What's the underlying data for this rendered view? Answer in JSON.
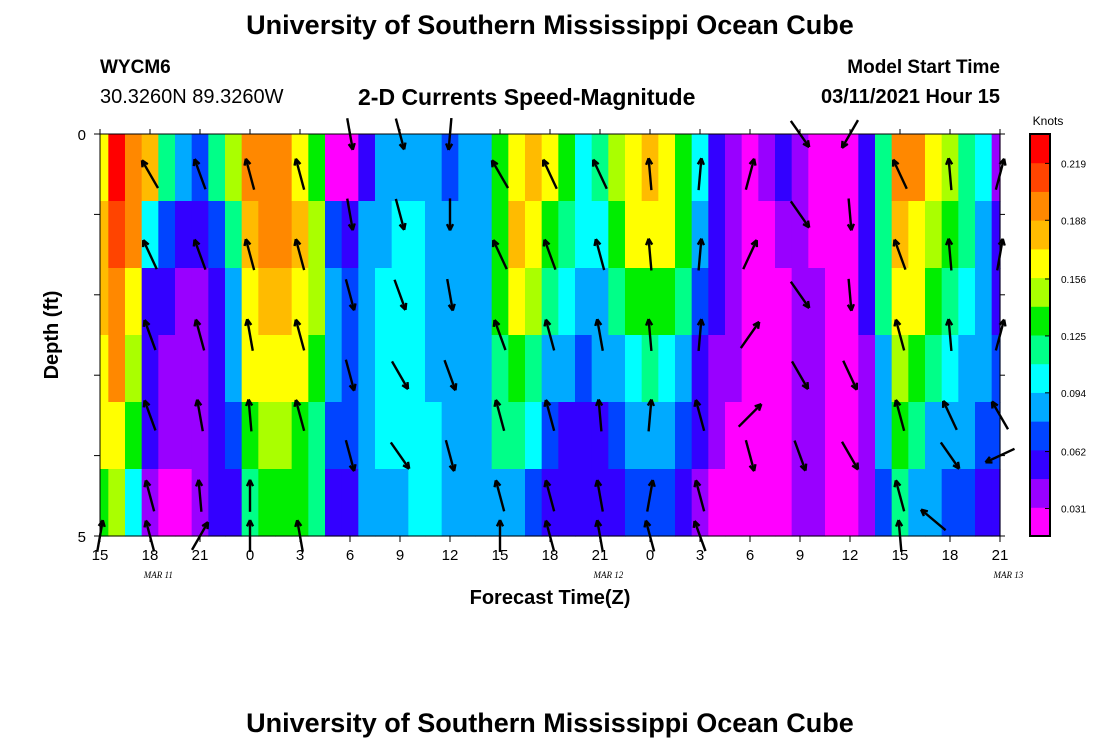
{
  "header": {
    "title": "University of Southern Mississippi Ocean Cube",
    "station_id": "WYCM6",
    "station_location": "30.3260N 89.3260W",
    "chart_title": "2-D Currents Speed-Magnitude",
    "start_label": "Model Start Time",
    "start_value": "03/11/2021 Hour 15"
  },
  "footer": {
    "title": "University of Southern Mississippi Ocean Cube"
  },
  "colors": {
    "palette": [
      "#ff00ff",
      "#9900ff",
      "#3300ff",
      "#0044ff",
      "#00aaff",
      "#00ffff",
      "#00ff88",
      "#00ee00",
      "#aaff00",
      "#ffff00",
      "#ffbb00",
      "#ff8800",
      "#ff4400",
      "#ff0000"
    ]
  },
  "chart_data": {
    "type": "heatmap",
    "title": "2-D Currents Speed-Magnitude",
    "xlabel": "Forecast Time(Z)",
    "ylabel": "Depth (ft)",
    "x_tick_labels": [
      "15",
      "18",
      "21",
      "0",
      "3",
      "6",
      "9",
      "12",
      "15",
      "18",
      "21",
      "0",
      "3",
      "6",
      "9",
      "12",
      "15",
      "18",
      "21"
    ],
    "date_labels": [
      "MAR  11",
      "MAR  12",
      "MAR  13"
    ],
    "y_tick_labels": [
      "0",
      "5"
    ],
    "ylim": [
      0,
      5
    ],
    "legend": {
      "title": "Knots",
      "placement": "right",
      "labels": [
        "0.219",
        "0.188",
        "0.156",
        "0.125",
        "0.094",
        "0.062",
        "0.031"
      ],
      "range": [
        0.016,
        0.235
      ]
    },
    "forecast_hours": [
      15,
      16,
      17,
      18,
      19,
      20,
      21,
      22,
      23,
      0,
      1,
      2,
      3,
      4,
      5,
      6,
      7,
      8,
      9,
      10,
      11,
      12,
      13,
      14,
      15,
      16,
      17,
      18,
      19,
      20,
      21,
      22,
      23,
      0,
      1,
      2,
      3,
      4,
      5,
      6,
      7,
      8,
      9,
      10,
      11,
      12,
      13,
      14,
      15,
      16,
      17,
      18,
      19,
      20,
      21
    ],
    "depth_levels": [
      0,
      1,
      2,
      3,
      4,
      5
    ],
    "speed_knots": [
      [
        0.17,
        0.22,
        0.2,
        0.18,
        0.12,
        0.09,
        0.07,
        0.11,
        0.15,
        0.19,
        0.2,
        0.19,
        0.17,
        0.14,
        0.03,
        0.02,
        0.06,
        0.08,
        0.09,
        0.08,
        0.08,
        0.07,
        0.08,
        0.09,
        0.13,
        0.17,
        0.18,
        0.16,
        0.13,
        0.1,
        0.11,
        0.15,
        0.17,
        0.18,
        0.16,
        0.14,
        0.1,
        0.05,
        0.04,
        0.03,
        0.04,
        0.05,
        0.04,
        0.03,
        0.03,
        0.02,
        0.05,
        0.12,
        0.2,
        0.19,
        0.17,
        0.15,
        0.12,
        0.1,
        0.04
      ],
      [
        0.18,
        0.21,
        0.19,
        0.1,
        0.07,
        0.05,
        0.05,
        0.07,
        0.11,
        0.18,
        0.19,
        0.19,
        0.18,
        0.15,
        0.07,
        0.06,
        0.08,
        0.09,
        0.1,
        0.1,
        0.09,
        0.08,
        0.08,
        0.09,
        0.14,
        0.18,
        0.17,
        0.14,
        0.12,
        0.1,
        0.1,
        0.13,
        0.16,
        0.17,
        0.16,
        0.13,
        0.08,
        0.05,
        0.04,
        0.03,
        0.03,
        0.04,
        0.04,
        0.03,
        0.03,
        0.03,
        0.05,
        0.12,
        0.18,
        0.17,
        0.15,
        0.13,
        0.11,
        0.09,
        0.05
      ],
      [
        0.18,
        0.2,
        0.17,
        0.06,
        0.05,
        0.04,
        0.04,
        0.05,
        0.09,
        0.17,
        0.18,
        0.18,
        0.17,
        0.15,
        0.08,
        0.07,
        0.09,
        0.1,
        0.1,
        0.1,
        0.09,
        0.09,
        0.08,
        0.09,
        0.13,
        0.17,
        0.15,
        0.12,
        0.1,
        0.09,
        0.09,
        0.11,
        0.13,
        0.14,
        0.13,
        0.11,
        0.07,
        0.05,
        0.04,
        0.03,
        0.03,
        0.03,
        0.04,
        0.04,
        0.03,
        0.03,
        0.05,
        0.11,
        0.17,
        0.16,
        0.13,
        0.11,
        0.1,
        0.09,
        0.06
      ],
      [
        0.17,
        0.19,
        0.15,
        0.05,
        0.04,
        0.04,
        0.04,
        0.05,
        0.08,
        0.16,
        0.17,
        0.17,
        0.16,
        0.14,
        0.08,
        0.07,
        0.09,
        0.1,
        0.1,
        0.1,
        0.09,
        0.09,
        0.09,
        0.09,
        0.12,
        0.14,
        0.12,
        0.09,
        0.08,
        0.07,
        0.08,
        0.09,
        0.1,
        0.11,
        0.1,
        0.09,
        0.06,
        0.04,
        0.04,
        0.03,
        0.03,
        0.03,
        0.04,
        0.04,
        0.03,
        0.03,
        0.04,
        0.09,
        0.15,
        0.13,
        0.11,
        0.1,
        0.09,
        0.08,
        0.07
      ],
      [
        0.16,
        0.17,
        0.13,
        0.05,
        0.04,
        0.04,
        0.04,
        0.05,
        0.07,
        0.14,
        0.15,
        0.15,
        0.14,
        0.12,
        0.07,
        0.07,
        0.09,
        0.1,
        0.1,
        0.1,
        0.1,
        0.09,
        0.09,
        0.09,
        0.11,
        0.12,
        0.1,
        0.07,
        0.06,
        0.06,
        0.06,
        0.07,
        0.08,
        0.09,
        0.08,
        0.07,
        0.05,
        0.04,
        0.03,
        0.03,
        0.03,
        0.03,
        0.04,
        0.04,
        0.03,
        0.03,
        0.04,
        0.08,
        0.13,
        0.11,
        0.09,
        0.08,
        0.08,
        0.07,
        0.07
      ],
      [
        0.13,
        0.15,
        0.1,
        0.04,
        0.03,
        0.03,
        0.04,
        0.05,
        0.06,
        0.11,
        0.13,
        0.14,
        0.13,
        0.11,
        0.06,
        0.06,
        0.08,
        0.09,
        0.09,
        0.1,
        0.1,
        0.09,
        0.09,
        0.09,
        0.09,
        0.09,
        0.07,
        0.05,
        0.05,
        0.05,
        0.05,
        0.06,
        0.07,
        0.07,
        0.07,
        0.06,
        0.04,
        0.03,
        0.03,
        0.03,
        0.03,
        0.03,
        0.04,
        0.04,
        0.03,
        0.03,
        0.04,
        0.07,
        0.11,
        0.09,
        0.08,
        0.07,
        0.07,
        0.06,
        0.06
      ]
    ],
    "vectors": [
      {
        "hour_index": 0,
        "depth": 5,
        "dir": 10
      },
      {
        "hour_index": 3,
        "depth": 0.5,
        "dir": 330
      },
      {
        "hour_index": 6,
        "depth": 0.5,
        "dir": 340
      },
      {
        "hour_index": 9,
        "depth": 0.5,
        "dir": 345
      },
      {
        "hour_index": 12,
        "depth": 0.5,
        "dir": 345
      },
      {
        "hour_index": 15,
        "depth": 0,
        "dir": 170
      },
      {
        "hour_index": 18,
        "depth": 0,
        "dir": 165
      },
      {
        "hour_index": 21,
        "depth": 0,
        "dir": 185
      },
      {
        "hour_index": 24,
        "depth": 0.5,
        "dir": 330
      },
      {
        "hour_index": 27,
        "depth": 0.5,
        "dir": 335
      },
      {
        "hour_index": 30,
        "depth": 0.5,
        "dir": 335
      },
      {
        "hour_index": 33,
        "depth": 0.5,
        "dir": 355
      },
      {
        "hour_index": 36,
        "depth": 0.5,
        "dir": 5
      },
      {
        "hour_index": 39,
        "depth": 0.5,
        "dir": 15
      },
      {
        "hour_index": 42,
        "depth": 0,
        "dir": 145
      },
      {
        "hour_index": 45,
        "depth": 0,
        "dir": 210
      },
      {
        "hour_index": 48,
        "depth": 0.5,
        "dir": 335
      },
      {
        "hour_index": 51,
        "depth": 0.5,
        "dir": 355
      },
      {
        "hour_index": 54,
        "depth": 0.5,
        "dir": 15
      },
      {
        "hour_index": 3,
        "depth": 1.5,
        "dir": 335
      },
      {
        "hour_index": 6,
        "depth": 1.5,
        "dir": 340
      },
      {
        "hour_index": 9,
        "depth": 1.5,
        "dir": 345
      },
      {
        "hour_index": 12,
        "depth": 1.5,
        "dir": 345
      },
      {
        "hour_index": 15,
        "depth": 1,
        "dir": 170
      },
      {
        "hour_index": 18,
        "depth": 1,
        "dir": 165
      },
      {
        "hour_index": 21,
        "depth": 1,
        "dir": 180
      },
      {
        "hour_index": 24,
        "depth": 1.5,
        "dir": 335
      },
      {
        "hour_index": 27,
        "depth": 1.5,
        "dir": 340
      },
      {
        "hour_index": 30,
        "depth": 1.5,
        "dir": 345
      },
      {
        "hour_index": 33,
        "depth": 1.5,
        "dir": 355
      },
      {
        "hour_index": 36,
        "depth": 1.5,
        "dir": 5
      },
      {
        "hour_index": 39,
        "depth": 1.5,
        "dir": 25
      },
      {
        "hour_index": 42,
        "depth": 1,
        "dir": 145
      },
      {
        "hour_index": 45,
        "depth": 1,
        "dir": 175
      },
      {
        "hour_index": 48,
        "depth": 1.5,
        "dir": 340
      },
      {
        "hour_index": 51,
        "depth": 1.5,
        "dir": 355
      },
      {
        "hour_index": 54,
        "depth": 1.5,
        "dir": 10
      },
      {
        "hour_index": 3,
        "depth": 2.5,
        "dir": 340
      },
      {
        "hour_index": 6,
        "depth": 2.5,
        "dir": 345
      },
      {
        "hour_index": 9,
        "depth": 2.5,
        "dir": 350
      },
      {
        "hour_index": 12,
        "depth": 2.5,
        "dir": 345
      },
      {
        "hour_index": 15,
        "depth": 2,
        "dir": 165
      },
      {
        "hour_index": 18,
        "depth": 2,
        "dir": 160
      },
      {
        "hour_index": 21,
        "depth": 2,
        "dir": 170
      },
      {
        "hour_index": 24,
        "depth": 2.5,
        "dir": 340
      },
      {
        "hour_index": 27,
        "depth": 2.5,
        "dir": 345
      },
      {
        "hour_index": 30,
        "depth": 2.5,
        "dir": 350
      },
      {
        "hour_index": 33,
        "depth": 2.5,
        "dir": 355
      },
      {
        "hour_index": 36,
        "depth": 2.5,
        "dir": 5
      },
      {
        "hour_index": 39,
        "depth": 2.5,
        "dir": 35
      },
      {
        "hour_index": 42,
        "depth": 2,
        "dir": 145
      },
      {
        "hour_index": 45,
        "depth": 2,
        "dir": 175
      },
      {
        "hour_index": 48,
        "depth": 2.5,
        "dir": 345
      },
      {
        "hour_index": 51,
        "depth": 2.5,
        "dir": 355
      },
      {
        "hour_index": 54,
        "depth": 2.5,
        "dir": 15
      },
      {
        "hour_index": 3,
        "depth": 3.5,
        "dir": 340
      },
      {
        "hour_index": 6,
        "depth": 3.5,
        "dir": 350
      },
      {
        "hour_index": 9,
        "depth": 3.5,
        "dir": 355
      },
      {
        "hour_index": 12,
        "depth": 3.5,
        "dir": 345
      },
      {
        "hour_index": 15,
        "depth": 3,
        "dir": 165
      },
      {
        "hour_index": 18,
        "depth": 3,
        "dir": 150
      },
      {
        "hour_index": 21,
        "depth": 3,
        "dir": 160
      },
      {
        "hour_index": 24,
        "depth": 3.5,
        "dir": 345
      },
      {
        "hour_index": 27,
        "depth": 3.5,
        "dir": 345
      },
      {
        "hour_index": 30,
        "depth": 3.5,
        "dir": 355
      },
      {
        "hour_index": 33,
        "depth": 3.5,
        "dir": 5
      },
      {
        "hour_index": 36,
        "depth": 3.5,
        "dir": 345
      },
      {
        "hour_index": 39,
        "depth": 3.5,
        "dir": 45
      },
      {
        "hour_index": 42,
        "depth": 3,
        "dir": 150
      },
      {
        "hour_index": 45,
        "depth": 3,
        "dir": 155
      },
      {
        "hour_index": 48,
        "depth": 3.5,
        "dir": 345
      },
      {
        "hour_index": 51,
        "depth": 3.5,
        "dir": 335
      },
      {
        "hour_index": 54,
        "depth": 3.5,
        "dir": 330
      },
      {
        "hour_index": 3,
        "depth": 4.5,
        "dir": 345
      },
      {
        "hour_index": 6,
        "depth": 4.5,
        "dir": 355
      },
      {
        "hour_index": 9,
        "depth": 4.5,
        "dir": 0
      },
      {
        "hour_index": 15,
        "depth": 4,
        "dir": 165
      },
      {
        "hour_index": 18,
        "depth": 4,
        "dir": 145
      },
      {
        "hour_index": 21,
        "depth": 4,
        "dir": 165
      },
      {
        "hour_index": 24,
        "depth": 4.5,
        "dir": 345
      },
      {
        "hour_index": 27,
        "depth": 4.5,
        "dir": 345
      },
      {
        "hour_index": 30,
        "depth": 4.5,
        "dir": 350
      },
      {
        "hour_index": 33,
        "depth": 4.5,
        "dir": 10
      },
      {
        "hour_index": 36,
        "depth": 4.5,
        "dir": 345
      },
      {
        "hour_index": 39,
        "depth": 4,
        "dir": 165
      },
      {
        "hour_index": 42,
        "depth": 4,
        "dir": 160
      },
      {
        "hour_index": 45,
        "depth": 4,
        "dir": 150
      },
      {
        "hour_index": 48,
        "depth": 4.5,
        "dir": 345
      },
      {
        "hour_index": 51,
        "depth": 4,
        "dir": 145
      },
      {
        "hour_index": 54,
        "depth": 4,
        "dir": 245
      },
      {
        "hour_index": 3,
        "depth": 5,
        "dir": 345
      },
      {
        "hour_index": 6,
        "depth": 5,
        "dir": 30
      },
      {
        "hour_index": 9,
        "depth": 5,
        "dir": 0
      },
      {
        "hour_index": 12,
        "depth": 5,
        "dir": 350
      },
      {
        "hour_index": 24,
        "depth": 5,
        "dir": 0
      },
      {
        "hour_index": 27,
        "depth": 5,
        "dir": 345
      },
      {
        "hour_index": 30,
        "depth": 5,
        "dir": 350
      },
      {
        "hour_index": 33,
        "depth": 5,
        "dir": 345
      },
      {
        "hour_index": 36,
        "depth": 5,
        "dir": 340
      },
      {
        "hour_index": 48,
        "depth": 5,
        "dir": 355
      },
      {
        "hour_index": 50,
        "depth": 4.8,
        "dir": 310
      }
    ]
  }
}
